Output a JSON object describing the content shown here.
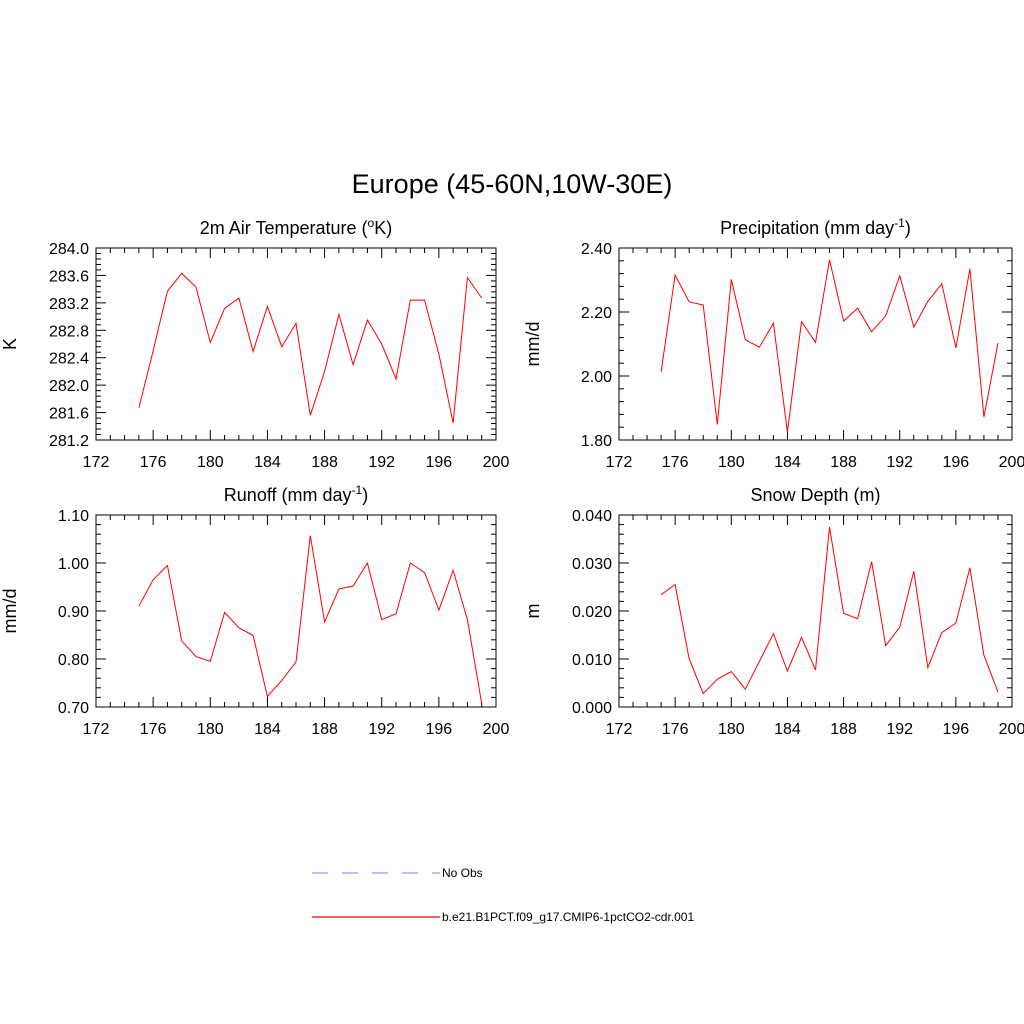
{
  "title": "Europe (45-60N,10W-30E)",
  "colors": {
    "model": "#ff0000",
    "obs": "#9999ff"
  },
  "legend": [
    {
      "label": "No Obs",
      "style": "dashed",
      "color": "#9999ff"
    },
    {
      "label": "b.e21.B1PCT.f09_g17.CMIP6-1pctCO2-cdr.001",
      "style": "solid",
      "color": "#ff0000"
    }
  ],
  "chart_data": [
    {
      "type": "line",
      "title": "2m Air Temperature (",
      "title_sup": "o",
      "title_post": "K)",
      "ylabel": "K",
      "xlim": [
        172,
        200
      ],
      "ylim": [
        281.2,
        284.0
      ],
      "xticks": [
        172,
        176,
        180,
        184,
        188,
        192,
        196,
        200
      ],
      "yticks": [
        "281.2",
        "281.6",
        "282.0",
        "282.4",
        "282.8",
        "283.2",
        "283.6",
        "284.0"
      ],
      "series": [
        {
          "x": [
            175,
            176,
            177,
            178,
            179,
            180,
            181,
            182,
            183,
            184,
            185,
            186,
            187,
            188,
            189,
            190,
            191,
            192,
            193,
            194,
            195,
            196,
            197,
            198,
            199
          ],
          "values": [
            281.67,
            282.5,
            283.37,
            283.63,
            283.43,
            282.62,
            283.12,
            283.27,
            282.49,
            283.15,
            282.56,
            282.9,
            281.56,
            282.2,
            283.03,
            282.3,
            282.95,
            282.6,
            282.09,
            283.24,
            283.24,
            282.45,
            281.45,
            283.57,
            283.27
          ]
        }
      ]
    },
    {
      "type": "line",
      "title": "Precipitation (mm day",
      "title_sup": "-1",
      "title_post": ")",
      "ylabel": "mm/d",
      "xlim": [
        172,
        200
      ],
      "ylim": [
        1.8,
        2.4
      ],
      "xticks": [
        172,
        176,
        180,
        184,
        188,
        192,
        196,
        200
      ],
      "yticks": [
        "1.80",
        "2.00",
        "2.20",
        "2.40"
      ],
      "series": [
        {
          "x": [
            175,
            176,
            177,
            178,
            179,
            180,
            181,
            182,
            183,
            184,
            185,
            186,
            187,
            188,
            189,
            190,
            191,
            192,
            193,
            194,
            195,
            196,
            197,
            198,
            199
          ],
          "values": [
            2.013,
            2.315,
            2.232,
            2.222,
            1.848,
            2.302,
            2.113,
            2.09,
            2.165,
            1.825,
            2.17,
            2.105,
            2.363,
            2.172,
            2.212,
            2.138,
            2.188,
            2.313,
            2.153,
            2.233,
            2.288,
            2.088,
            2.335,
            1.872,
            2.103
          ]
        }
      ]
    },
    {
      "type": "line",
      "title": "Runoff (mm day",
      "title_sup": "-1",
      "title_post": ")",
      "ylabel": "mm/d",
      "xlim": [
        172,
        200
      ],
      "ylim": [
        0.7,
        1.1
      ],
      "xticks": [
        172,
        176,
        180,
        184,
        188,
        192,
        196,
        200
      ],
      "yticks": [
        "0.70",
        "0.80",
        "0.90",
        "1.00",
        "1.10"
      ],
      "series": [
        {
          "x": [
            175,
            176,
            177,
            178,
            179,
            180,
            181,
            182,
            183,
            184,
            185,
            186,
            187,
            188,
            189,
            190,
            191,
            192,
            193,
            194,
            195,
            196,
            197,
            198,
            199
          ],
          "values": [
            0.91,
            0.965,
            0.995,
            0.838,
            0.805,
            0.795,
            0.897,
            0.865,
            0.849,
            0.722,
            0.755,
            0.794,
            1.057,
            0.877,
            0.946,
            0.952,
            1.0,
            0.882,
            0.894,
            1.0,
            0.98,
            0.902,
            0.985,
            0.882,
            0.707
          ]
        }
      ]
    },
    {
      "type": "line",
      "title": "Snow Depth (m)",
      "title_sup": "",
      "title_post": "",
      "ylabel": "m",
      "xlim": [
        172,
        200
      ],
      "ylim": [
        0.0,
        0.04
      ],
      "xticks": [
        172,
        176,
        180,
        184,
        188,
        192,
        196,
        200
      ],
      "yticks": [
        "0.000",
        "0.010",
        "0.020",
        "0.030",
        "0.040"
      ],
      "series": [
        {
          "x": [
            175,
            176,
            177,
            178,
            179,
            180,
            181,
            182,
            183,
            184,
            185,
            186,
            187,
            188,
            189,
            190,
            191,
            192,
            193,
            194,
            195,
            196,
            197,
            198,
            199
          ],
          "values": [
            0.0234,
            0.0255,
            0.01,
            0.0028,
            0.0058,
            0.0074,
            0.0037,
            0.0095,
            0.0153,
            0.0075,
            0.0145,
            0.0077,
            0.0375,
            0.0195,
            0.0184,
            0.0303,
            0.0128,
            0.0166,
            0.0283,
            0.0082,
            0.0155,
            0.0175,
            0.029,
            0.0108,
            0.0031
          ]
        }
      ]
    }
  ]
}
